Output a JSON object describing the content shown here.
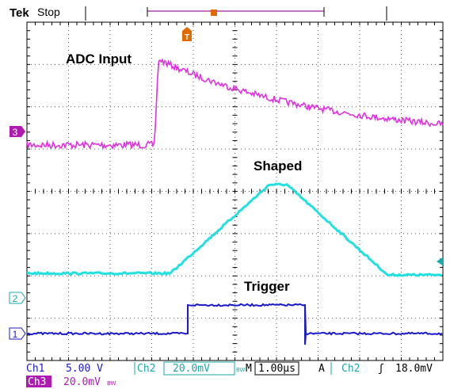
{
  "header": {
    "brand": "Tek",
    "state": "Stop"
  },
  "trigger_marker": {
    "label": "T"
  },
  "channel_markers": {
    "ch3": "3",
    "ch2": "2",
    "ch1": "1"
  },
  "traces": {
    "adc_label": "ADC Input",
    "shaped_label": "Shaped",
    "trigger_label": "Trigger"
  },
  "readout": {
    "ch1_name": "Ch1",
    "ch1_scale": "5.00 V",
    "ch2_name": "Ch2",
    "ch2_scale": "20.0mV",
    "bw_symbol": "BW",
    "time_prefix": "M",
    "time_scale": "1.00µs",
    "acq_mode": "A",
    "trig_source": "Ch2",
    "trig_slope": "ʃ",
    "trig_level": "18.0mV",
    "ch3_name": "Ch3",
    "ch3_scale": "20.0mV"
  },
  "colors": {
    "ch1": "#1a1acc",
    "ch2": "#22e0e0",
    "ch3": "#e030e0",
    "trigger": "#e06a00",
    "ch2_text": "#1aa8a8",
    "ch3_bg": "#b01ab0",
    "grid": "#000000"
  }
}
